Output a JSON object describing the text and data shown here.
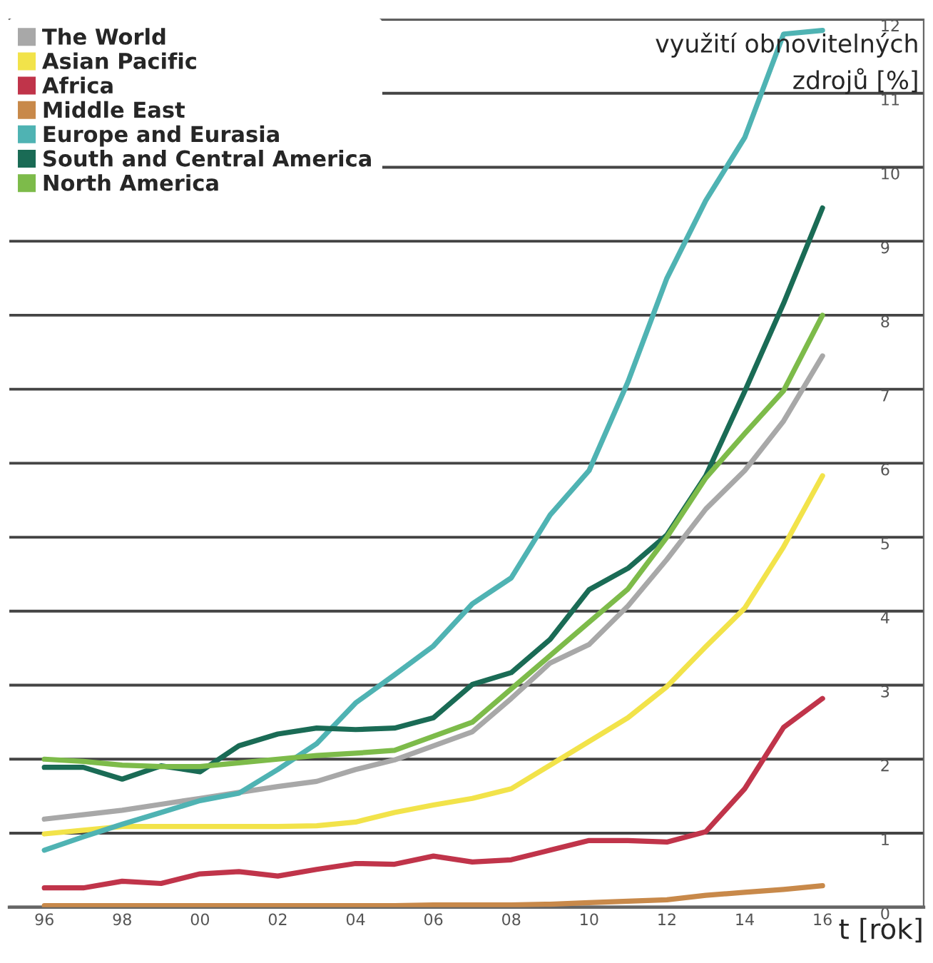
{
  "chart_data": {
    "type": "line",
    "xlabel": "t [rok]",
    "ylabel": "využití obnovitelných\nzdrojů [%]",
    "x": [
      1996,
      1997,
      1998,
      1999,
      2000,
      2001,
      2002,
      2003,
      2004,
      2005,
      2006,
      2007,
      2008,
      2009,
      2010,
      2011,
      2012,
      2013,
      2014,
      2015,
      2016
    ],
    "series": [
      {
        "name": "The World",
        "color": "#a8a8a8",
        "values": [
          1.19,
          1.25,
          1.31,
          1.39,
          1.47,
          1.55,
          1.63,
          1.7,
          1.86,
          1.99,
          2.18,
          2.37,
          2.82,
          3.3,
          3.55,
          4.07,
          4.7,
          5.38,
          5.9,
          6.57,
          7.45
        ]
      },
      {
        "name": "Asian Pacific",
        "color": "#f2e34a",
        "values": [
          0.99,
          1.04,
          1.09,
          1.09,
          1.09,
          1.09,
          1.09,
          1.1,
          1.15,
          1.28,
          1.38,
          1.47,
          1.6,
          1.92,
          2.24,
          2.56,
          2.98,
          3.52,
          4.04,
          4.87,
          5.83
        ]
      },
      {
        "name": "Africa",
        "color": "#c0344a",
        "values": [
          0.26,
          0.26,
          0.35,
          0.32,
          0.45,
          0.48,
          0.42,
          0.51,
          0.59,
          0.58,
          0.69,
          0.61,
          0.64,
          0.77,
          0.9,
          0.9,
          0.88,
          1.02,
          1.6,
          2.43,
          2.82
        ]
      },
      {
        "name": "Middle East",
        "color": "#c8894a",
        "values": [
          0.02,
          0.02,
          0.02,
          0.02,
          0.02,
          0.02,
          0.02,
          0.02,
          0.02,
          0.02,
          0.03,
          0.03,
          0.03,
          0.04,
          0.06,
          0.08,
          0.1,
          0.16,
          0.2,
          0.24,
          0.29
        ]
      },
      {
        "name": "Europe and Eurasia",
        "color": "#4fb3b3",
        "values": [
          0.77,
          0.95,
          1.12,
          1.28,
          1.44,
          1.54,
          1.86,
          2.21,
          2.76,
          3.14,
          3.53,
          4.1,
          4.45,
          5.3,
          5.9,
          7.1,
          8.5,
          9.55,
          10.4,
          11.8,
          11.85
        ]
      },
      {
        "name": "South and Central America",
        "color": "#1a6b55",
        "values": [
          1.89,
          1.89,
          1.73,
          1.91,
          1.83,
          2.18,
          2.34,
          2.42,
          2.4,
          2.42,
          2.56,
          3.01,
          3.17,
          3.62,
          4.29,
          4.58,
          5.03,
          5.83,
          6.97,
          8.16,
          9.45
        ]
      },
      {
        "name": "North America",
        "color": "#7dbb4a",
        "values": [
          2.0,
          1.97,
          1.92,
          1.9,
          1.9,
          1.95,
          2.0,
          2.05,
          2.08,
          2.12,
          2.31,
          2.5,
          2.95,
          3.4,
          3.85,
          4.3,
          5.0,
          5.8,
          6.4,
          6.98,
          8.0
        ]
      }
    ],
    "xlim": [
      1995.1,
      2018.6
    ],
    "xticks": [
      {
        "value": 1996,
        "label": "96"
      },
      {
        "value": 1998,
        "label": "98"
      },
      {
        "value": 2000,
        "label": "00"
      },
      {
        "value": 2002,
        "label": "02"
      },
      {
        "value": 2004,
        "label": "04"
      },
      {
        "value": 2006,
        "label": "06"
      },
      {
        "value": 2008,
        "label": "08"
      },
      {
        "value": 2010,
        "label": "10"
      },
      {
        "value": 2012,
        "label": "12"
      },
      {
        "value": 2014,
        "label": "14"
      },
      {
        "value": 2016,
        "label": "16"
      }
    ],
    "ylim": [
      0,
      12
    ],
    "yticks": [
      0,
      1,
      2,
      3,
      4,
      5,
      6,
      7,
      8,
      9,
      10,
      11,
      12
    ],
    "grid": "y",
    "legend": "top left",
    "marker": "none",
    "line_style": "solid"
  }
}
